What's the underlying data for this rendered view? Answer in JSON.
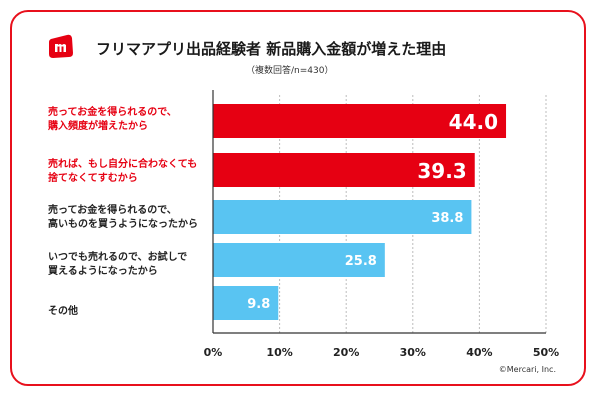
{
  "header": {
    "title": "フリマアプリ出品経験者 新品購入金額が増えた理由",
    "subtitle": "（複数回答/n=430）",
    "logo_icon": "mercari-m-logo-icon"
  },
  "labels": [
    {
      "line1": "売ってお金を得られるので、",
      "line2": "購入頻度が増えたから"
    },
    {
      "line1": "売れば、もし自分に合わなくても",
      "line2": "捨てなくてすむから"
    },
    {
      "line1": "売ってお金を得られるので、",
      "line2": "高いものを買うようになったから"
    },
    {
      "line1": "いつでも売れるので、お試しで",
      "line2": "買えるようになったから"
    },
    {
      "line1": "その他",
      "line2": ""
    }
  ],
  "chart_data": {
    "type": "bar",
    "orientation": "horizontal",
    "categories": [
      "売ってお金を得られるので、購入頻度が増えたから",
      "売れば、もし自分に合わなくても捨てなくてすむから",
      "売ってお金を得られるので、高いものを買うようになったから",
      "いつでも売れるので、お試しで買えるようになったから",
      "その他"
    ],
    "values": [
      44.0,
      39.3,
      38.8,
      25.8,
      9.8
    ],
    "value_labels": [
      "44.0",
      "39.3",
      "38.8",
      "25.8",
      "9.8"
    ],
    "highlight": [
      true,
      true,
      false,
      false,
      false
    ],
    "xlim": [
      0,
      50
    ],
    "xticks": [
      "0%",
      "10%",
      "20%",
      "30%",
      "40%",
      "50%"
    ],
    "xtick_values": [
      0,
      10,
      20,
      30,
      40,
      50
    ],
    "grid": true,
    "colors": {
      "highlight": "#e60012",
      "normal": "#59c4f2",
      "axis": "#333333",
      "grid": "#bdbdbd"
    }
  },
  "footer": {
    "copyright": "©Mercari, Inc."
  },
  "colors": {
    "brand_red": "#e60012",
    "frame": "#e8101c"
  }
}
